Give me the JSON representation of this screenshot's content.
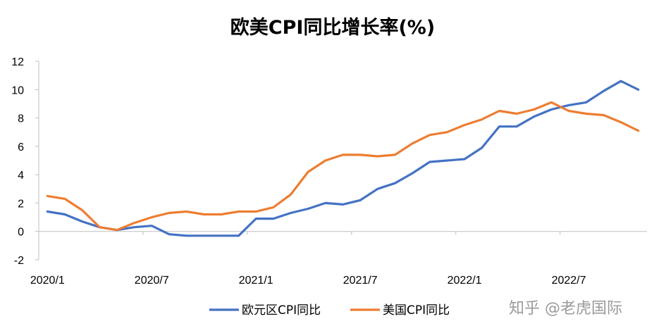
{
  "watermark": "知乎 @老虎国际",
  "chart_data": {
    "type": "line",
    "title": "欧美CPI同比增长率(%)",
    "xlabel": "",
    "ylabel": "",
    "ylim": [
      -2,
      12
    ],
    "yticks": [
      "-2",
      "0",
      "2",
      "4",
      "6",
      "8",
      "10",
      "12"
    ],
    "xtick_labels": [
      "2020/1",
      "2020/7",
      "2021/1",
      "2021/7",
      "2022/1",
      "2022/7"
    ],
    "x": [
      "2020/1",
      "2020/2",
      "2020/3",
      "2020/4",
      "2020/5",
      "2020/6",
      "2020/7",
      "2020/8",
      "2020/9",
      "2020/10",
      "2020/11",
      "2020/12",
      "2021/1",
      "2021/2",
      "2021/3",
      "2021/4",
      "2021/5",
      "2021/6",
      "2021/7",
      "2021/8",
      "2021/9",
      "2021/10",
      "2021/11",
      "2021/12",
      "2022/1",
      "2022/2",
      "2022/3",
      "2022/4",
      "2022/5",
      "2022/6",
      "2022/7",
      "2022/8",
      "2022/9",
      "2022/10",
      "2022/11"
    ],
    "grid": false,
    "legend_position": "bottom",
    "series": [
      {
        "name": "欧元区CPI同比",
        "color": "#4472c4",
        "values": [
          1.4,
          1.2,
          0.7,
          0.3,
          0.1,
          0.3,
          0.4,
          -0.2,
          -0.3,
          -0.3,
          -0.3,
          -0.3,
          0.9,
          0.9,
          1.3,
          1.6,
          2.0,
          1.9,
          2.2,
          3.0,
          3.4,
          4.1,
          4.9,
          5.0,
          5.1,
          5.9,
          7.4,
          7.4,
          8.1,
          8.6,
          8.9,
          9.1,
          9.9,
          10.6,
          10.0
        ]
      },
      {
        "name": "美国CPI同比",
        "color": "#ed7d31",
        "values": [
          2.5,
          2.3,
          1.5,
          0.3,
          0.1,
          0.6,
          1.0,
          1.3,
          1.4,
          1.2,
          1.2,
          1.4,
          1.4,
          1.7,
          2.6,
          4.2,
          5.0,
          5.4,
          5.4,
          5.3,
          5.4,
          6.2,
          6.8,
          7.0,
          7.5,
          7.9,
          8.5,
          8.3,
          8.6,
          9.1,
          8.5,
          8.3,
          8.2,
          7.7,
          7.1
        ]
      }
    ]
  }
}
